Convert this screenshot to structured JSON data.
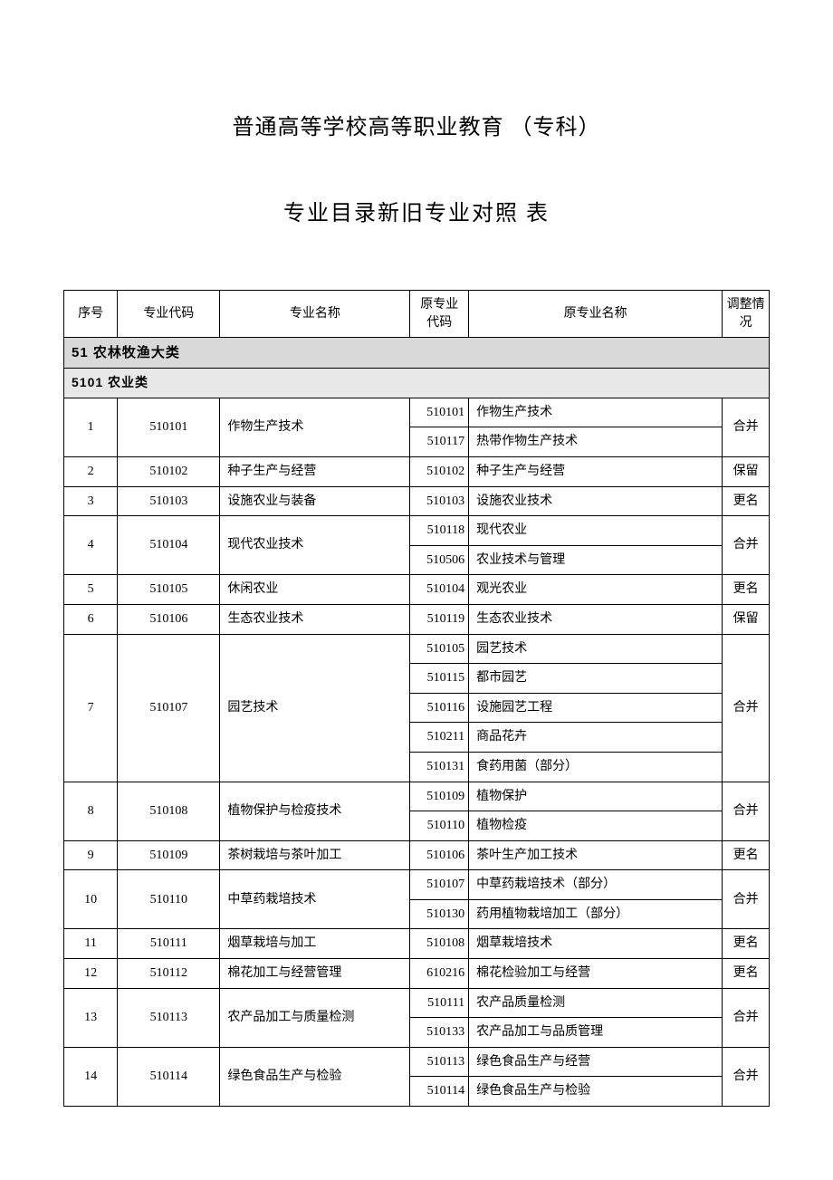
{
  "title_line1": "普通高等学校高等职业教育 （专科）",
  "title_line2": "专业目录新旧专业对照 表",
  "headers": {
    "seq": "序号",
    "code": "专业代码",
    "name": "专业名称",
    "ocode": "原专业代码",
    "oname": "原专业名称",
    "adj": "调整情况"
  },
  "category": "51 农林牧渔大类",
  "subcategory": "5101 农业类",
  "rows": [
    {
      "seq": "1",
      "code": "510101",
      "name": "作物生产技术",
      "adj": "合并",
      "olds": [
        {
          "ocode": "510101",
          "oname": "作物生产技术"
        },
        {
          "ocode": "510117",
          "oname": "热带作物生产技术"
        }
      ]
    },
    {
      "seq": "2",
      "code": "510102",
      "name": "种子生产与经营",
      "adj": "保留",
      "olds": [
        {
          "ocode": "510102",
          "oname": "种子生产与经营"
        }
      ]
    },
    {
      "seq": "3",
      "code": "510103",
      "name": "设施农业与装备",
      "adj": "更名",
      "olds": [
        {
          "ocode": "510103",
          "oname": "设施农业技术"
        }
      ]
    },
    {
      "seq": "4",
      "code": "510104",
      "name": "现代农业技术",
      "adj": "合并",
      "olds": [
        {
          "ocode": "510118",
          "oname": "现代农业"
        },
        {
          "ocode": "510506",
          "oname": "农业技术与管理"
        }
      ]
    },
    {
      "seq": "5",
      "code": "510105",
      "name": "休闲农业",
      "adj": "更名",
      "olds": [
        {
          "ocode": "510104",
          "oname": "观光农业"
        }
      ]
    },
    {
      "seq": "6",
      "code": "510106",
      "name": "生态农业技术",
      "adj": "保留",
      "olds": [
        {
          "ocode": "510119",
          "oname": "生态农业技术"
        }
      ]
    },
    {
      "seq": "7",
      "code": "510107",
      "name": "园艺技术",
      "adj": "合并",
      "olds": [
        {
          "ocode": "510105",
          "oname": "园艺技术"
        },
        {
          "ocode": "510115",
          "oname": "都市园艺"
        },
        {
          "ocode": "510116",
          "oname": "设施园艺工程"
        },
        {
          "ocode": "510211",
          "oname": "商品花卉"
        },
        {
          "ocode": "510131",
          "oname": "食药用菌（部分）"
        }
      ]
    },
    {
      "seq": "8",
      "code": "510108",
      "name": "植物保护与检疫技术",
      "adj": "合并",
      "olds": [
        {
          "ocode": "510109",
          "oname": "植物保护"
        },
        {
          "ocode": "510110",
          "oname": "植物检疫"
        }
      ]
    },
    {
      "seq": "9",
      "code": "510109",
      "name": "茶树栽培与茶叶加工",
      "adj": "更名",
      "olds": [
        {
          "ocode": "510106",
          "oname": "茶叶生产加工技术"
        }
      ]
    },
    {
      "seq": "10",
      "code": "510110",
      "name": "中草药栽培技术",
      "adj": "合并",
      "olds": [
        {
          "ocode": "510107",
          "oname": "中草药栽培技术（部分）"
        },
        {
          "ocode": "510130",
          "oname": "药用植物栽培加工（部分）"
        }
      ]
    },
    {
      "seq": "11",
      "code": "510111",
      "name": "烟草栽培与加工",
      "adj": "更名",
      "olds": [
        {
          "ocode": "510108",
          "oname": "烟草栽培技术"
        }
      ]
    },
    {
      "seq": "12",
      "code": "510112",
      "name": "棉花加工与经营管理",
      "adj": "更名",
      "olds": [
        {
          "ocode": "610216",
          "oname": "棉花检验加工与经营"
        }
      ]
    },
    {
      "seq": "13",
      "code": "510113",
      "name": "农产品加工与质量检测",
      "adj": "合并",
      "olds": [
        {
          "ocode": "510111",
          "oname": "农产品质量检测"
        },
        {
          "ocode": "510133",
          "oname": "农产品加工与品质管理"
        }
      ]
    },
    {
      "seq": "14",
      "code": "510114",
      "name": "绿色食品生产与检验",
      "adj": "合并",
      "olds": [
        {
          "ocode": "510113",
          "oname": "绿色食品生产与经营"
        },
        {
          "ocode": "510114",
          "oname": "绿色食品生产与检验"
        }
      ]
    }
  ]
}
